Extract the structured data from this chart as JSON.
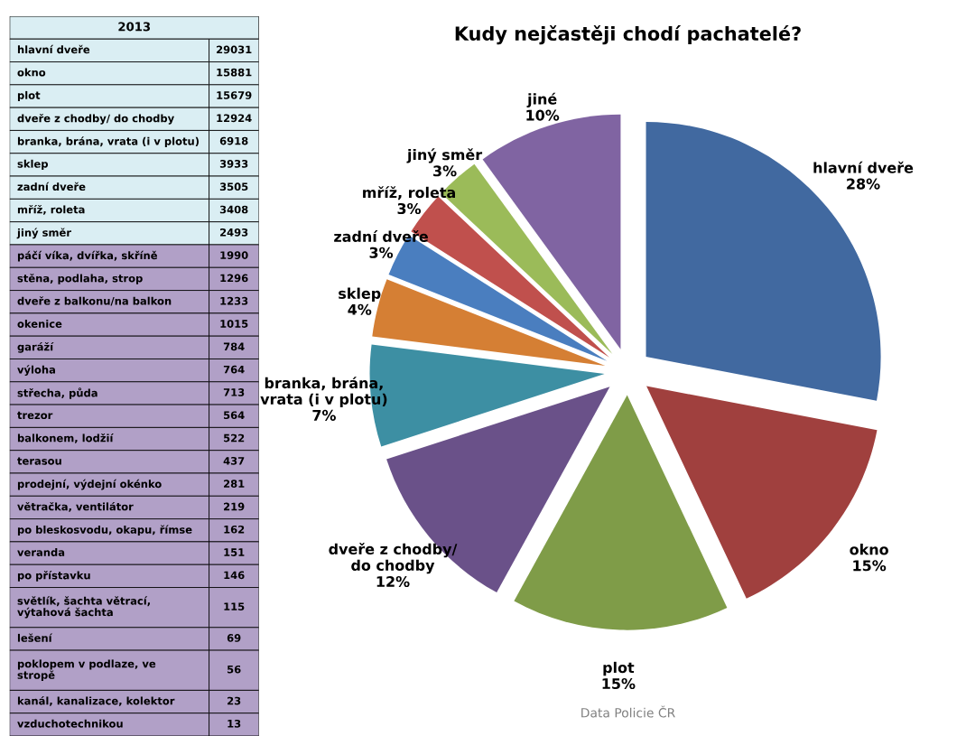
{
  "chart_data": [
    {
      "type": "other",
      "title": "2013",
      "data_labels": true,
      "categories": [
        "hlavní dveře",
        "okno",
        "plot",
        "dveře z chodby/ do chodby",
        "branka, brána, vrata (i v plotu)",
        "sklep",
        "zadní dveře",
        "mříž, roleta",
        "jiný směr",
        "páčí víka, dvířka, skříně",
        "stěna, podlaha, strop",
        "dveře z balkonu/na balkon",
        "okenice",
        "garáží",
        "výloha",
        "střecha, půda",
        "trezor",
        "balkonem, lodžií",
        "terasou",
        "prodejní, výdejní okénko",
        "větračka, ventilátor",
        "po bleskosvodu, okapu, římse",
        "veranda",
        "po přístavku",
        "světlík, šachta větrací,\nvýtahová šachta",
        "lešení",
        "poklopem v podlaze, ve\nstropě",
        "kanál, kanalizace, kolektor",
        "vzduchotechnikou"
      ],
      "values": [
        29031,
        15881,
        15679,
        12924,
        6918,
        3933,
        3505,
        3408,
        2493,
        1990,
        1296,
        1233,
        1015,
        784,
        764,
        713,
        564,
        522,
        437,
        281,
        219,
        162,
        151,
        146,
        115,
        69,
        56,
        23,
        13
      ],
      "colors": [
        "#daeef3",
        "#daeef3",
        "#daeef3",
        "#daeef3",
        "#daeef3",
        "#daeef3",
        "#daeef3",
        "#daeef3",
        "#daeef3",
        "#b1a0c7",
        "#b1a0c7",
        "#b1a0c7",
        "#b1a0c7",
        "#b1a0c7",
        "#b1a0c7",
        "#b1a0c7",
        "#b1a0c7",
        "#b1a0c7",
        "#b1a0c7",
        "#b1a0c7",
        "#b1a0c7",
        "#b1a0c7",
        "#b1a0c7",
        "#b1a0c7",
        "#b1a0c7",
        "#b1a0c7",
        "#b1a0c7",
        "#b1a0c7",
        "#b1a0c7"
      ]
    },
    {
      "type": "pie",
      "title": "Kudy nejčastěji chodí pachatelé?",
      "categories": [
        "hlavní dveře",
        "okno",
        "plot",
        "dveře z chodby/\ndo chodby",
        "branka, brána,\nvrata (i v plotu)",
        "sklep",
        "zadní dveře",
        "mříž, roleta",
        "jiný směr",
        "jiné"
      ],
      "values": [
        28,
        15,
        15,
        12,
        7,
        4,
        3,
        3,
        3,
        10
      ],
      "value_labels": [
        "28%",
        "15%",
        "15%",
        "12%",
        "7%",
        "4%",
        "3%",
        "3%",
        "3%",
        "10%"
      ],
      "colors": [
        "#4169a0",
        "#a0403e",
        "#7f9c48",
        "#6a5189",
        "#3d8fa3",
        "#d57f34",
        "#4a7ebf",
        "#c0504d",
        "#9bbb59",
        "#8064a2"
      ],
      "annotations": [
        "Data Policie ČR"
      ]
    }
  ]
}
